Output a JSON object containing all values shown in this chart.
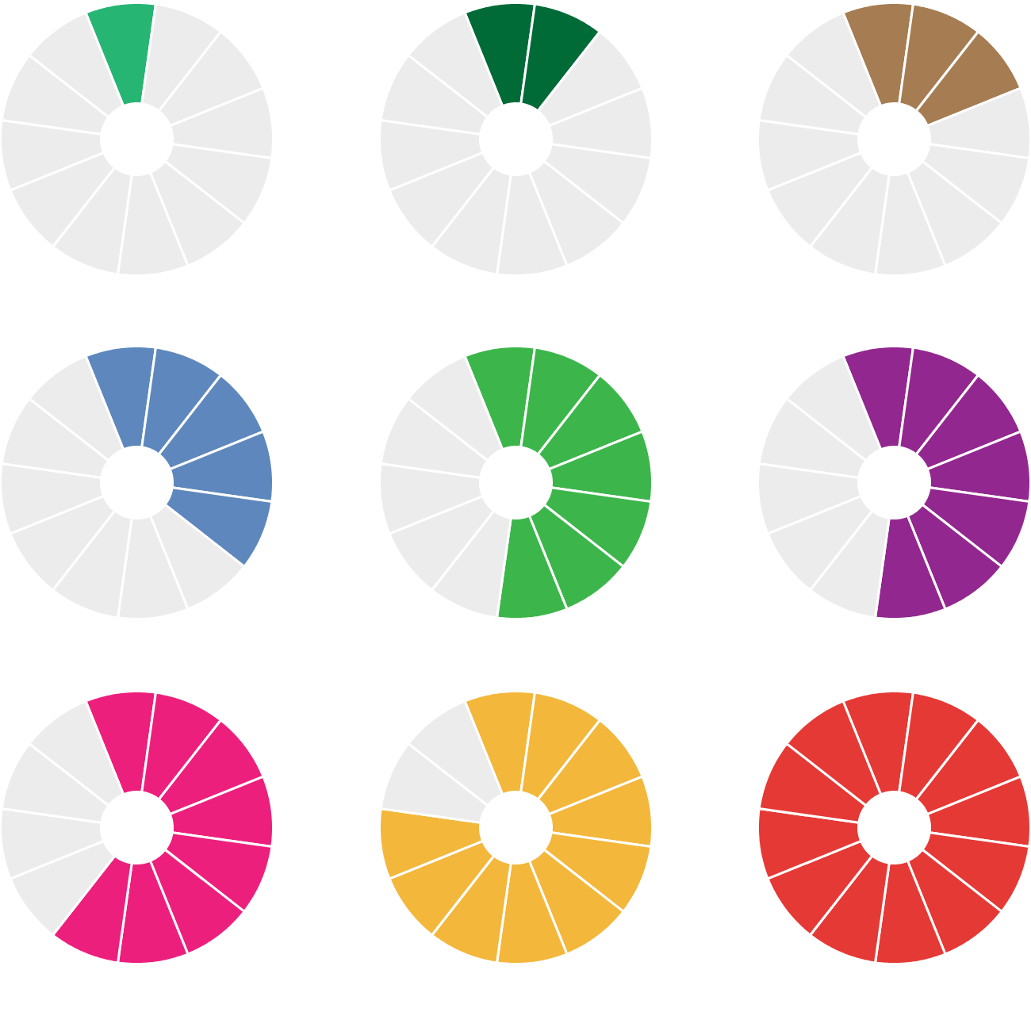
{
  "chart_data": [
    {
      "type": "donut",
      "categories": [
        null,
        null,
        null,
        null,
        null,
        null,
        null,
        null,
        null,
        null,
        null,
        null
      ],
      "values": [
        8.333,
        8.333,
        8.333,
        8.333,
        8.333,
        8.333,
        8.333,
        8.333,
        8.333,
        8.333,
        8.333,
        8.333
      ],
      "colors": [
        "#27b574",
        "#ececec",
        "#ececec",
        "#ececec",
        "#ececec",
        "#ececec",
        "#ececec",
        "#ececec",
        "#ececec",
        "#ececec",
        "#ececec",
        "#ececec"
      ]
    },
    {
      "type": "donut",
      "categories": [
        null,
        null,
        null,
        null,
        null,
        null,
        null,
        null,
        null,
        null,
        null,
        null
      ],
      "values": [
        8.333,
        8.333,
        8.333,
        8.333,
        8.333,
        8.333,
        8.333,
        8.333,
        8.333,
        8.333,
        8.333,
        8.333
      ],
      "colors": [
        "#006b37",
        "#006b37",
        "#ececec",
        "#ececec",
        "#ececec",
        "#ececec",
        "#ececec",
        "#ececec",
        "#ececec",
        "#ececec",
        "#ececec",
        "#ececec"
      ]
    },
    {
      "type": "donut",
      "categories": [
        null,
        null,
        null,
        null,
        null,
        null,
        null,
        null,
        null,
        null,
        null,
        null
      ],
      "values": [
        8.333,
        8.333,
        8.333,
        8.333,
        8.333,
        8.333,
        8.333,
        8.333,
        8.333,
        8.333,
        8.333,
        8.333
      ],
      "colors": [
        "#a67c52",
        "#a67c52",
        "#a67c52",
        "#ececec",
        "#ececec",
        "#ececec",
        "#ececec",
        "#ececec",
        "#ececec",
        "#ececec",
        "#ececec",
        "#ececec"
      ]
    },
    {
      "type": "donut",
      "categories": [
        null,
        null,
        null,
        null,
        null,
        null,
        null,
        null,
        null,
        null,
        null,
        null
      ],
      "values": [
        8.333,
        8.333,
        8.333,
        8.333,
        8.333,
        8.333,
        8.333,
        8.333,
        8.333,
        8.333,
        8.333,
        8.333
      ],
      "colors": [
        "#5e88bd",
        "#5e88bd",
        "#5e88bd",
        "#5e88bd",
        "#5e88bd",
        "#ececec",
        "#ececec",
        "#ececec",
        "#ececec",
        "#ececec",
        "#ececec",
        "#ececec"
      ]
    },
    {
      "type": "donut",
      "categories": [
        null,
        null,
        null,
        null,
        null,
        null,
        null,
        null,
        null,
        null,
        null,
        null
      ],
      "values": [
        8.333,
        8.333,
        8.333,
        8.333,
        8.333,
        8.333,
        8.333,
        8.333,
        8.333,
        8.333,
        8.333,
        8.333
      ],
      "colors": [
        "#3cb64b",
        "#3cb64b",
        "#3cb64b",
        "#3cb64b",
        "#3cb64b",
        "#3cb64b",
        "#3cb64b",
        "#ececec",
        "#ececec",
        "#ececec",
        "#ececec",
        "#ececec"
      ]
    },
    {
      "type": "donut",
      "categories": [
        null,
        null,
        null,
        null,
        null,
        null,
        null,
        null,
        null,
        null,
        null,
        null
      ],
      "values": [
        8.333,
        8.333,
        8.333,
        8.333,
        8.333,
        8.333,
        8.333,
        8.333,
        8.333,
        8.333,
        8.333,
        8.333
      ],
      "colors": [
        "#92278f",
        "#92278f",
        "#92278f",
        "#92278f",
        "#92278f",
        "#92278f",
        "#92278f",
        "#ececec",
        "#ececec",
        "#ececec",
        "#ececec",
        "#ececec"
      ]
    },
    {
      "type": "donut",
      "categories": [
        null,
        null,
        null,
        null,
        null,
        null,
        null,
        null,
        null,
        null,
        null,
        null
      ],
      "values": [
        8.333,
        8.333,
        8.333,
        8.333,
        8.333,
        8.333,
        8.333,
        8.333,
        8.333,
        8.333,
        8.333,
        8.333
      ],
      "colors": [
        "#ed1f7d",
        "#ed1f7d",
        "#ed1f7d",
        "#ed1f7d",
        "#ed1f7d",
        "#ed1f7d",
        "#ed1f7d",
        "#ed1f7d",
        "#ececec",
        "#ececec",
        "#ececec",
        "#ececec"
      ]
    },
    {
      "type": "donut",
      "categories": [
        null,
        null,
        null,
        null,
        null,
        null,
        null,
        null,
        null,
        null,
        null,
        null
      ],
      "values": [
        8.333,
        8.333,
        8.333,
        8.333,
        8.333,
        8.333,
        8.333,
        8.333,
        8.333,
        8.333,
        8.333,
        8.333
      ],
      "colors": [
        "#f3b73c",
        "#f3b73c",
        "#f3b73c",
        "#f3b73c",
        "#f3b73c",
        "#f3b73c",
        "#f3b73c",
        "#f3b73c",
        "#f3b73c",
        "#f3b73c",
        "#ececec",
        "#ececec"
      ]
    },
    {
      "type": "donut",
      "categories": [
        null,
        null,
        null,
        null,
        null,
        null,
        null,
        null,
        null,
        null,
        null,
        null
      ],
      "values": [
        8.333,
        8.333,
        8.333,
        8.333,
        8.333,
        8.333,
        8.333,
        8.333,
        8.333,
        8.333,
        8.333,
        8.333
      ],
      "colors": [
        "#e53935",
        "#e53935",
        "#e53935",
        "#e53935",
        "#e53935",
        "#e53935",
        "#e53935",
        "#e53935",
        "#e53935",
        "#e53935",
        "#e53935",
        "#e53935"
      ]
    }
  ]
}
